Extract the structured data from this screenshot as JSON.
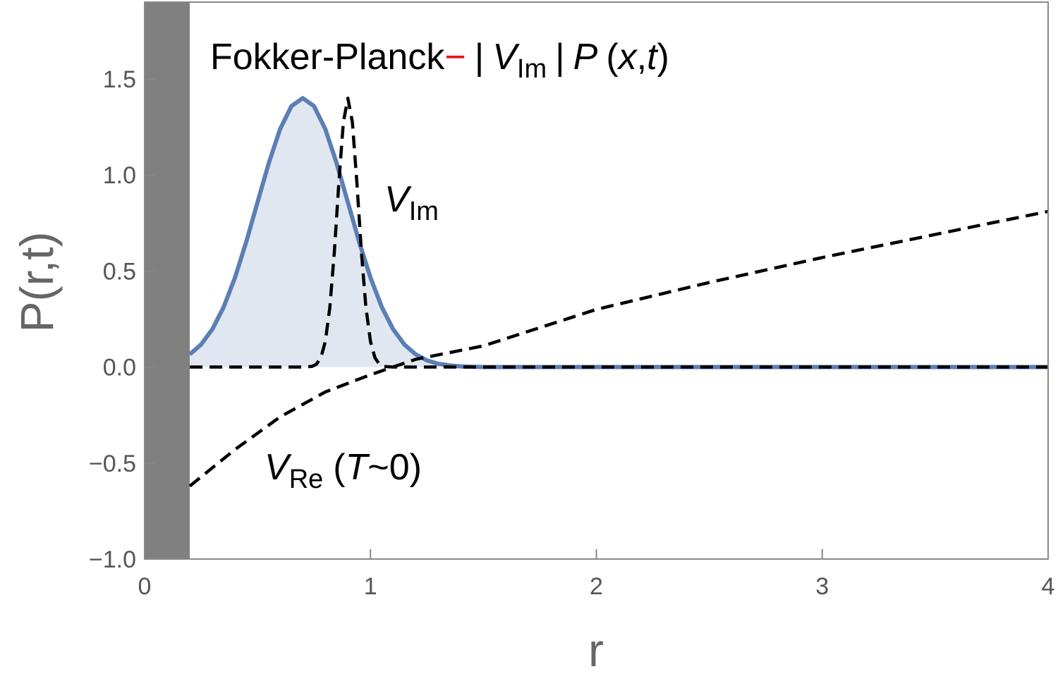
{
  "chart_data": {
    "type": "line",
    "title": {
      "main": "Fokker-Planck",
      "operator": "−",
      "formula": [
        "|",
        "V",
        "Im",
        "|",
        "P",
        "(",
        "x",
        ",",
        "t",
        ")"
      ]
    },
    "xlabel": "r",
    "ylabel": "P(r,t)",
    "xlim": [
      0,
      4
    ],
    "ylim": [
      -1,
      1.9
    ],
    "xticks": [
      0,
      1,
      2,
      3,
      4
    ],
    "yticks": [
      {
        "value": -1,
        "label": "−1.0"
      },
      {
        "value": -0.5,
        "label": "−0.5"
      },
      {
        "value": 0,
        "label": "0.0"
      },
      0.5,
      {
        "value": 1,
        "label": "1.0"
      },
      1.5
    ],
    "shaded_xrange": [
      0,
      0.2
    ],
    "shaded_color": "#808080",
    "series": [
      {
        "color": "#5b7fb5",
        "fill": "#e1e7f0",
        "style": "solid",
        "x": [
          0.2,
          0.25,
          0.3,
          0.35,
          0.4,
          0.45,
          0.5,
          0.55,
          0.6,
          0.65,
          0.7,
          0.75,
          0.8,
          0.85,
          0.9,
          0.95,
          1.0,
          1.05,
          1.1,
          1.15,
          1.2,
          1.25,
          1.3,
          1.35,
          1.4,
          1.5,
          2,
          3,
          4
        ],
        "values": [
          0.066,
          0.117,
          0.197,
          0.312,
          0.465,
          0.651,
          0.858,
          1.062,
          1.239,
          1.358,
          1.4,
          1.358,
          1.239,
          1.062,
          0.858,
          0.651,
          0.465,
          0.312,
          0.197,
          0.117,
          0.066,
          0.034,
          0.017,
          0.008,
          0.003,
          0,
          0,
          0,
          0
        ]
      },
      {
        "color": "#000000",
        "style": "dashed",
        "x": [
          0.2,
          0.7,
          0.74,
          0.76,
          0.78,
          0.8,
          0.82,
          0.84,
          0.86,
          0.88,
          0.9,
          0.92,
          0.94,
          0.96,
          0.98,
          1.0,
          1.02,
          1.04,
          1.06,
          1.1,
          4
        ],
        "values": [
          0,
          0,
          0.003,
          0.014,
          0.047,
          0.132,
          0.309,
          0.598,
          0.959,
          1.274,
          1.4,
          1.274,
          0.959,
          0.598,
          0.309,
          0.132,
          0.047,
          0.014,
          0.003,
          0,
          0
        ]
      },
      {
        "color": "#000000",
        "style": "dashed",
        "x": [
          0.2,
          0.4,
          0.6,
          0.8,
          1.0,
          1.2,
          1.5,
          2.0,
          2.5,
          3.0,
          3.5,
          4.0
        ],
        "values": [
          -0.62,
          -0.43,
          -0.26,
          -0.13,
          -0.04,
          0.04,
          0.11,
          0.3,
          0.44,
          0.57,
          0.69,
          0.81
        ]
      }
    ],
    "annotations": [
      {
        "parts": [
          "V",
          "Im"
        ]
      },
      {
        "parts": [
          "V",
          "Re",
          "(",
          "T",
          "~0)"
        ]
      }
    ]
  }
}
